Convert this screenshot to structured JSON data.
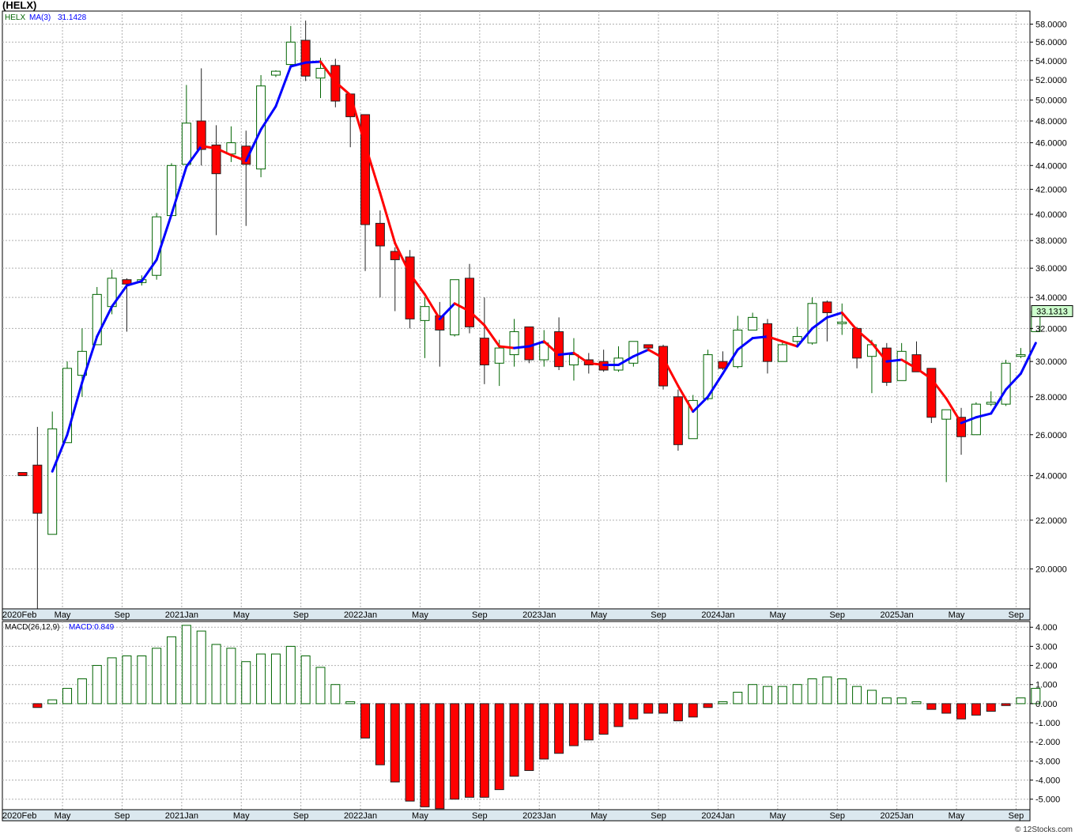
{
  "page": {
    "title": "(HELX)",
    "copyright": "© 12Stocks.com"
  },
  "colors": {
    "up": "#006400",
    "down": "#ff0000",
    "ma_up": "#0000ff",
    "ma_down": "#ff0000",
    "grid": "#b0b0b0",
    "axis_bar": "#dbe8ef",
    "last_price_box": "#ccffcc"
  },
  "chart_data": [
    {
      "type": "candlestick",
      "name": "price",
      "legend": {
        "ticker": "HELX",
        "ma_label": "MA(3)",
        "ma_value": "31.1428"
      },
      "last_price_label": "33.1313",
      "scale": "log",
      "ylim": [
        18.5,
        59.5
      ],
      "yticks": [
        "58.0000",
        "56.0000",
        "54.0000",
        "52.0000",
        "50.0000",
        "48.0000",
        "46.0000",
        "44.0000",
        "42.0000",
        "40.0000",
        "38.0000",
        "36.0000",
        "34.0000",
        "32.0000",
        "30.0000",
        "28.0000",
        "26.0000",
        "24.0000",
        "22.0000",
        "20.0000"
      ],
      "x_labels": [
        "2020Feb",
        "May",
        "Sep",
        "2021Jan",
        "May",
        "Sep",
        "2022Jan",
        "May",
        "Sep",
        "2023Jan",
        "May",
        "Sep",
        "2024Jan",
        "May",
        "Sep",
        "2025Jan",
        "May",
        "Sep"
      ],
      "x_label_months": [
        0,
        3,
        7,
        11,
        15,
        19,
        23,
        27,
        31,
        35,
        39,
        43,
        47,
        51,
        55,
        59,
        63,
        67
      ],
      "candles": [
        {
          "m": 0,
          "o": 24.15,
          "h": 24.15,
          "l": 24.0,
          "c": 24.0
        },
        {
          "m": 1,
          "o": 24.5,
          "h": 26.4,
          "l": 18.5,
          "c": 22.3
        },
        {
          "m": 2,
          "o": 21.4,
          "h": 27.2,
          "l": 21.4,
          "c": 26.3
        },
        {
          "m": 3,
          "o": 25.6,
          "h": 30.0,
          "l": 25.6,
          "c": 29.6
        },
        {
          "m": 4,
          "o": 29.2,
          "h": 32.0,
          "l": 28.0,
          "c": 30.6
        },
        {
          "m": 5,
          "o": 31.0,
          "h": 34.7,
          "l": 31.0,
          "c": 34.2
        },
        {
          "m": 6,
          "o": 33.4,
          "h": 35.9,
          "l": 32.9,
          "c": 35.3
        },
        {
          "m": 7,
          "o": 35.2,
          "h": 35.3,
          "l": 31.8,
          "c": 34.9
        },
        {
          "m": 8,
          "o": 35.0,
          "h": 35.5,
          "l": 34.8,
          "c": 35.2
        },
        {
          "m": 9,
          "o": 35.5,
          "h": 40.1,
          "l": 35.2,
          "c": 39.8
        },
        {
          "m": 10,
          "o": 39.9,
          "h": 44.2,
          "l": 39.8,
          "c": 44.0
        },
        {
          "m": 11,
          "o": 44.1,
          "h": 51.5,
          "l": 44.0,
          "c": 47.8
        },
        {
          "m": 12,
          "o": 48.0,
          "h": 53.2,
          "l": 44.0,
          "c": 45.4
        },
        {
          "m": 13,
          "o": 45.8,
          "h": 47.6,
          "l": 38.4,
          "c": 43.3
        },
        {
          "m": 14,
          "o": 45.0,
          "h": 47.5,
          "l": 44.3,
          "c": 46.0
        },
        {
          "m": 15,
          "o": 45.7,
          "h": 47.1,
          "l": 39.1,
          "c": 44.1
        },
        {
          "m": 16,
          "o": 43.7,
          "h": 52.5,
          "l": 43.0,
          "c": 51.4
        },
        {
          "m": 17,
          "o": 52.5,
          "h": 53.0,
          "l": 52.3,
          "c": 52.9
        },
        {
          "m": 18,
          "o": 53.6,
          "h": 57.8,
          "l": 53.2,
          "c": 56.0
        },
        {
          "m": 19,
          "o": 56.2,
          "h": 58.4,
          "l": 51.9,
          "c": 52.4
        },
        {
          "m": 20,
          "o": 52.2,
          "h": 54.3,
          "l": 50.2,
          "c": 53.2
        },
        {
          "m": 21,
          "o": 53.5,
          "h": 54.2,
          "l": 49.3,
          "c": 49.9
        },
        {
          "m": 22,
          "o": 50.6,
          "h": 50.6,
          "l": 45.6,
          "c": 48.4
        },
        {
          "m": 23,
          "o": 48.6,
          "h": 48.6,
          "l": 35.8,
          "c": 39.2
        },
        {
          "m": 24,
          "o": 39.3,
          "h": 40.3,
          "l": 34.0,
          "c": 37.6
        },
        {
          "m": 25,
          "o": 37.2,
          "h": 37.5,
          "l": 33.1,
          "c": 36.6
        },
        {
          "m": 26,
          "o": 36.8,
          "h": 37.3,
          "l": 32.0,
          "c": 32.6
        },
        {
          "m": 27,
          "o": 32.5,
          "h": 34.0,
          "l": 30.2,
          "c": 33.4
        },
        {
          "m": 28,
          "o": 32.8,
          "h": 33.7,
          "l": 29.7,
          "c": 31.9
        },
        {
          "m": 29,
          "o": 31.6,
          "h": 35.2,
          "l": 31.5,
          "c": 35.2
        },
        {
          "m": 30,
          "o": 35.3,
          "h": 36.3,
          "l": 31.7,
          "c": 32.1
        },
        {
          "m": 31,
          "o": 31.4,
          "h": 34.0,
          "l": 28.7,
          "c": 29.8
        },
        {
          "m": 32,
          "o": 29.9,
          "h": 31.3,
          "l": 28.6,
          "c": 30.8
        },
        {
          "m": 33,
          "o": 30.4,
          "h": 32.6,
          "l": 29.7,
          "c": 31.8
        },
        {
          "m": 34,
          "o": 32.1,
          "h": 32.1,
          "l": 29.9,
          "c": 30.1
        },
        {
          "m": 35,
          "o": 30.1,
          "h": 31.9,
          "l": 29.7,
          "c": 31.1
        },
        {
          "m": 36,
          "o": 31.8,
          "h": 32.7,
          "l": 29.5,
          "c": 29.7
        },
        {
          "m": 37,
          "o": 29.8,
          "h": 31.4,
          "l": 28.9,
          "c": 30.4
        },
        {
          "m": 38,
          "o": 30.1,
          "h": 30.5,
          "l": 29.3,
          "c": 29.8
        },
        {
          "m": 39,
          "o": 30.0,
          "h": 30.7,
          "l": 29.4,
          "c": 29.5
        },
        {
          "m": 40,
          "o": 29.5,
          "h": 30.9,
          "l": 29.4,
          "c": 30.2
        },
        {
          "m": 41,
          "o": 29.9,
          "h": 31.2,
          "l": 29.7,
          "c": 31.2
        },
        {
          "m": 42,
          "o": 31.0,
          "h": 31.0,
          "l": 30.6,
          "c": 30.8
        },
        {
          "m": 43,
          "o": 30.9,
          "h": 31.0,
          "l": 28.4,
          "c": 28.6
        },
        {
          "m": 44,
          "o": 28.0,
          "h": 28.4,
          "l": 25.2,
          "c": 25.5
        },
        {
          "m": 45,
          "o": 25.8,
          "h": 28.1,
          "l": 25.8,
          "c": 27.8
        },
        {
          "m": 46,
          "o": 27.9,
          "h": 30.7,
          "l": 27.8,
          "c": 30.4
        },
        {
          "m": 47,
          "o": 30.0,
          "h": 30.6,
          "l": 29.5,
          "c": 29.6
        },
        {
          "m": 48,
          "o": 29.7,
          "h": 32.8,
          "l": 29.6,
          "c": 31.9
        },
        {
          "m": 49,
          "o": 31.9,
          "h": 33.0,
          "l": 32.0,
          "c": 32.7
        },
        {
          "m": 50,
          "o": 32.3,
          "h": 32.6,
          "l": 29.3,
          "c": 30.0
        },
        {
          "m": 51,
          "o": 30.0,
          "h": 31.2,
          "l": 30.0,
          "c": 31.0
        },
        {
          "m": 52,
          "o": 31.2,
          "h": 32.1,
          "l": 30.9,
          "c": 31.5
        },
        {
          "m": 53,
          "o": 31.1,
          "h": 34.0,
          "l": 31.0,
          "c": 33.6
        },
        {
          "m": 54,
          "o": 33.7,
          "h": 33.8,
          "l": 31.2,
          "c": 33.0
        },
        {
          "m": 55,
          "o": 32.3,
          "h": 33.6,
          "l": 31.6,
          "c": 32.4
        },
        {
          "m": 56,
          "o": 32.0,
          "h": 32.1,
          "l": 29.6,
          "c": 30.2
        },
        {
          "m": 57,
          "o": 30.3,
          "h": 31.3,
          "l": 28.2,
          "c": 31.0
        },
        {
          "m": 58,
          "o": 30.8,
          "h": 31.1,
          "l": 28.6,
          "c": 28.8
        },
        {
          "m": 59,
          "o": 28.9,
          "h": 31.1,
          "l": 28.9,
          "c": 30.6
        },
        {
          "m": 60,
          "o": 30.4,
          "h": 31.2,
          "l": 29.4,
          "c": 29.4
        },
        {
          "m": 61,
          "o": 29.6,
          "h": 29.6,
          "l": 26.6,
          "c": 26.9
        },
        {
          "m": 62,
          "o": 26.8,
          "h": 27.2,
          "l": 23.7,
          "c": 27.3
        },
        {
          "m": 63,
          "o": 26.9,
          "h": 27.4,
          "l": 25.0,
          "c": 25.9
        },
        {
          "m": 64,
          "o": 26.0,
          "h": 27.7,
          "l": 26.0,
          "c": 27.6
        },
        {
          "m": 65,
          "o": 27.6,
          "h": 28.3,
          "l": 27.5,
          "c": 27.7
        },
        {
          "m": 66,
          "o": 27.6,
          "h": 30.1,
          "l": 27.5,
          "c": 29.9
        },
        {
          "m": 67,
          "o": 30.3,
          "h": 30.8,
          "l": 30.2,
          "c": 30.4
        },
        {
          "m": 68,
          "o": 31.8,
          "h": 33.2,
          "l": 31.8,
          "c": 33.1
        }
      ],
      "ma3": [
        {
          "m": 2,
          "v": 24.2
        },
        {
          "m": 3,
          "v": 26.0
        },
        {
          "m": 4,
          "v": 28.8
        },
        {
          "m": 5,
          "v": 31.5
        },
        {
          "m": 6,
          "v": 33.4
        },
        {
          "m": 7,
          "v": 34.8
        },
        {
          "m": 8,
          "v": 35.1
        },
        {
          "m": 9,
          "v": 36.6
        },
        {
          "m": 10,
          "v": 40.0
        },
        {
          "m": 11,
          "v": 43.9
        },
        {
          "m": 12,
          "v": 45.7
        },
        {
          "m": 13,
          "v": 45.5
        },
        {
          "m": 14,
          "v": 44.9
        },
        {
          "m": 15,
          "v": 44.4
        },
        {
          "m": 16,
          "v": 47.2
        },
        {
          "m": 17,
          "v": 49.4
        },
        {
          "m": 18,
          "v": 53.4
        },
        {
          "m": 19,
          "v": 53.8
        },
        {
          "m": 20,
          "v": 53.9
        },
        {
          "m": 21,
          "v": 51.8
        },
        {
          "m": 22,
          "v": 50.5
        },
        {
          "m": 23,
          "v": 45.8
        },
        {
          "m": 24,
          "v": 41.7
        },
        {
          "m": 25,
          "v": 37.8
        },
        {
          "m": 26,
          "v": 35.6
        },
        {
          "m": 27,
          "v": 34.2
        },
        {
          "m": 28,
          "v": 32.6
        },
        {
          "m": 29,
          "v": 33.6
        },
        {
          "m": 30,
          "v": 33.1
        },
        {
          "m": 31,
          "v": 32.2
        },
        {
          "m": 32,
          "v": 30.9
        },
        {
          "m": 33,
          "v": 30.8
        },
        {
          "m": 34,
          "v": 30.9
        },
        {
          "m": 35,
          "v": 31.2
        },
        {
          "m": 36,
          "v": 30.4
        },
        {
          "m": 37,
          "v": 30.5
        },
        {
          "m": 38,
          "v": 29.9
        },
        {
          "m": 39,
          "v": 29.8
        },
        {
          "m": 40,
          "v": 29.8
        },
        {
          "m": 41,
          "v": 30.3
        },
        {
          "m": 42,
          "v": 30.7
        },
        {
          "m": 43,
          "v": 30.2
        },
        {
          "m": 44,
          "v": 28.6
        },
        {
          "m": 45,
          "v": 27.2
        },
        {
          "m": 46,
          "v": 28.0
        },
        {
          "m": 47,
          "v": 29.3
        },
        {
          "m": 48,
          "v": 30.7
        },
        {
          "m": 49,
          "v": 31.4
        },
        {
          "m": 50,
          "v": 31.5
        },
        {
          "m": 51,
          "v": 31.2
        },
        {
          "m": 52,
          "v": 30.9
        },
        {
          "m": 53,
          "v": 32.0
        },
        {
          "m": 54,
          "v": 32.7
        },
        {
          "m": 55,
          "v": 33.0
        },
        {
          "m": 56,
          "v": 31.9
        },
        {
          "m": 57,
          "v": 31.1
        },
        {
          "m": 58,
          "v": 30.0
        },
        {
          "m": 59,
          "v": 30.1
        },
        {
          "m": 60,
          "v": 29.6
        },
        {
          "m": 61,
          "v": 29.0
        },
        {
          "m": 62,
          "v": 27.9
        },
        {
          "m": 63,
          "v": 26.6
        },
        {
          "m": 64,
          "v": 26.9
        },
        {
          "m": 65,
          "v": 27.1
        },
        {
          "m": 66,
          "v": 28.4
        },
        {
          "m": 67,
          "v": 29.3
        },
        {
          "m": 68,
          "v": 31.1
        }
      ]
    },
    {
      "type": "bar",
      "name": "macd",
      "legend": {
        "label": "MACD(26,12,9)",
        "value_label": "MACD:0.849"
      },
      "ylim": [
        -5.55,
        4.3
      ],
      "yticks": [
        "4.000",
        "3.000",
        "2.000",
        "1.000",
        "0.000",
        "-1.000",
        "-2.000",
        "-3.000",
        "-4.000",
        "-5.000"
      ],
      "x_labels": [
        "2020Feb",
        "May",
        "Sep",
        "2021Jan",
        "May",
        "Sep",
        "2022Jan",
        "May",
        "Sep",
        "2023Jan",
        "May",
        "Sep",
        "2024Jan",
        "May",
        "Sep",
        "2025Jan",
        "May",
        "Sep"
      ],
      "values": [
        {
          "m": 1,
          "v": -0.2
        },
        {
          "m": 2,
          "v": 0.2
        },
        {
          "m": 3,
          "v": 0.8
        },
        {
          "m": 4,
          "v": 1.3
        },
        {
          "m": 5,
          "v": 2.0
        },
        {
          "m": 6,
          "v": 2.4
        },
        {
          "m": 7,
          "v": 2.5
        },
        {
          "m": 8,
          "v": 2.5
        },
        {
          "m": 9,
          "v": 2.9
        },
        {
          "m": 10,
          "v": 3.5
        },
        {
          "m": 11,
          "v": 4.1
        },
        {
          "m": 12,
          "v": 3.8
        },
        {
          "m": 13,
          "v": 3.1
        },
        {
          "m": 14,
          "v": 2.9
        },
        {
          "m": 15,
          "v": 2.2
        },
        {
          "m": 16,
          "v": 2.6
        },
        {
          "m": 17,
          "v": 2.6
        },
        {
          "m": 18,
          "v": 3.0
        },
        {
          "m": 19,
          "v": 2.5
        },
        {
          "m": 20,
          "v": 1.9
        },
        {
          "m": 21,
          "v": 1.0
        },
        {
          "m": 22,
          "v": 0.1
        },
        {
          "m": 23,
          "v": -1.8
        },
        {
          "m": 24,
          "v": -3.2
        },
        {
          "m": 25,
          "v": -4.1
        },
        {
          "m": 26,
          "v": -5.1
        },
        {
          "m": 27,
          "v": -5.4
        },
        {
          "m": 28,
          "v": -5.5
        },
        {
          "m": 29,
          "v": -5.0
        },
        {
          "m": 30,
          "v": -4.9
        },
        {
          "m": 31,
          "v": -4.9
        },
        {
          "m": 32,
          "v": -4.5
        },
        {
          "m": 33,
          "v": -3.8
        },
        {
          "m": 34,
          "v": -3.5
        },
        {
          "m": 35,
          "v": -2.9
        },
        {
          "m": 36,
          "v": -2.6
        },
        {
          "m": 37,
          "v": -2.2
        },
        {
          "m": 38,
          "v": -1.9
        },
        {
          "m": 39,
          "v": -1.6
        },
        {
          "m": 40,
          "v": -1.2
        },
        {
          "m": 41,
          "v": -0.8
        },
        {
          "m": 42,
          "v": -0.5
        },
        {
          "m": 43,
          "v": -0.5
        },
        {
          "m": 44,
          "v": -0.9
        },
        {
          "m": 45,
          "v": -0.7
        },
        {
          "m": 46,
          "v": -0.2
        },
        {
          "m": 47,
          "v": 0.1
        },
        {
          "m": 48,
          "v": 0.6
        },
        {
          "m": 49,
          "v": 1.0
        },
        {
          "m": 50,
          "v": 0.9
        },
        {
          "m": 51,
          "v": 0.9
        },
        {
          "m": 52,
          "v": 1.0
        },
        {
          "m": 53,
          "v": 1.3
        },
        {
          "m": 54,
          "v": 1.4
        },
        {
          "m": 55,
          "v": 1.3
        },
        {
          "m": 56,
          "v": 0.9
        },
        {
          "m": 57,
          "v": 0.7
        },
        {
          "m": 58,
          "v": 0.3
        },
        {
          "m": 59,
          "v": 0.3
        },
        {
          "m": 60,
          "v": 0.1
        },
        {
          "m": 61,
          "v": -0.3
        },
        {
          "m": 62,
          "v": -0.5
        },
        {
          "m": 63,
          "v": -0.8
        },
        {
          "m": 64,
          "v": -0.6
        },
        {
          "m": 65,
          "v": -0.4
        },
        {
          "m": 66,
          "v": -0.1
        },
        {
          "m": 67,
          "v": 0.3
        },
        {
          "m": 68,
          "v": 0.8
        }
      ]
    }
  ]
}
